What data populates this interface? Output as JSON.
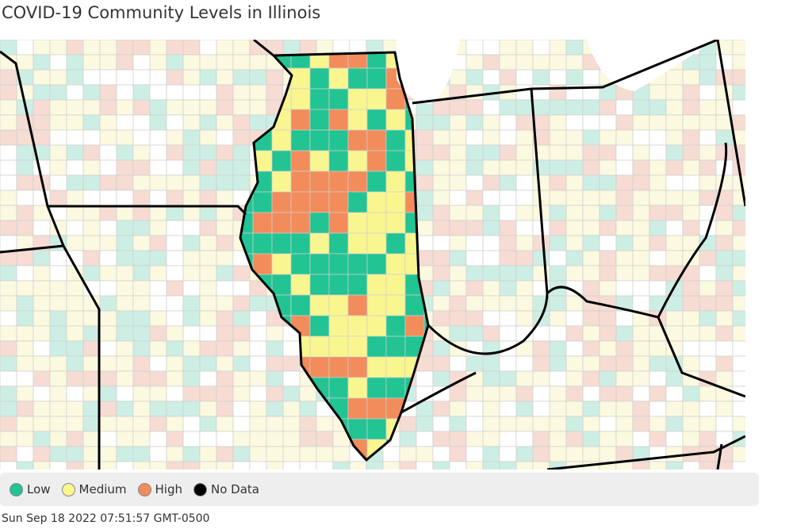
{
  "header": {
    "title": "COVID-19 Community Levels in Illinois"
  },
  "legend": {
    "items": [
      {
        "label": "Low",
        "color": "#22c493"
      },
      {
        "label": "Medium",
        "color": "#faf68f"
      },
      {
        "label": "High",
        "color": "#f28c5a"
      },
      {
        "label": "No Data",
        "color": "#000000"
      }
    ]
  },
  "footer": {
    "timestamp": "Sun Sep 18 2022 07:51:57 GMT-0500"
  }
}
